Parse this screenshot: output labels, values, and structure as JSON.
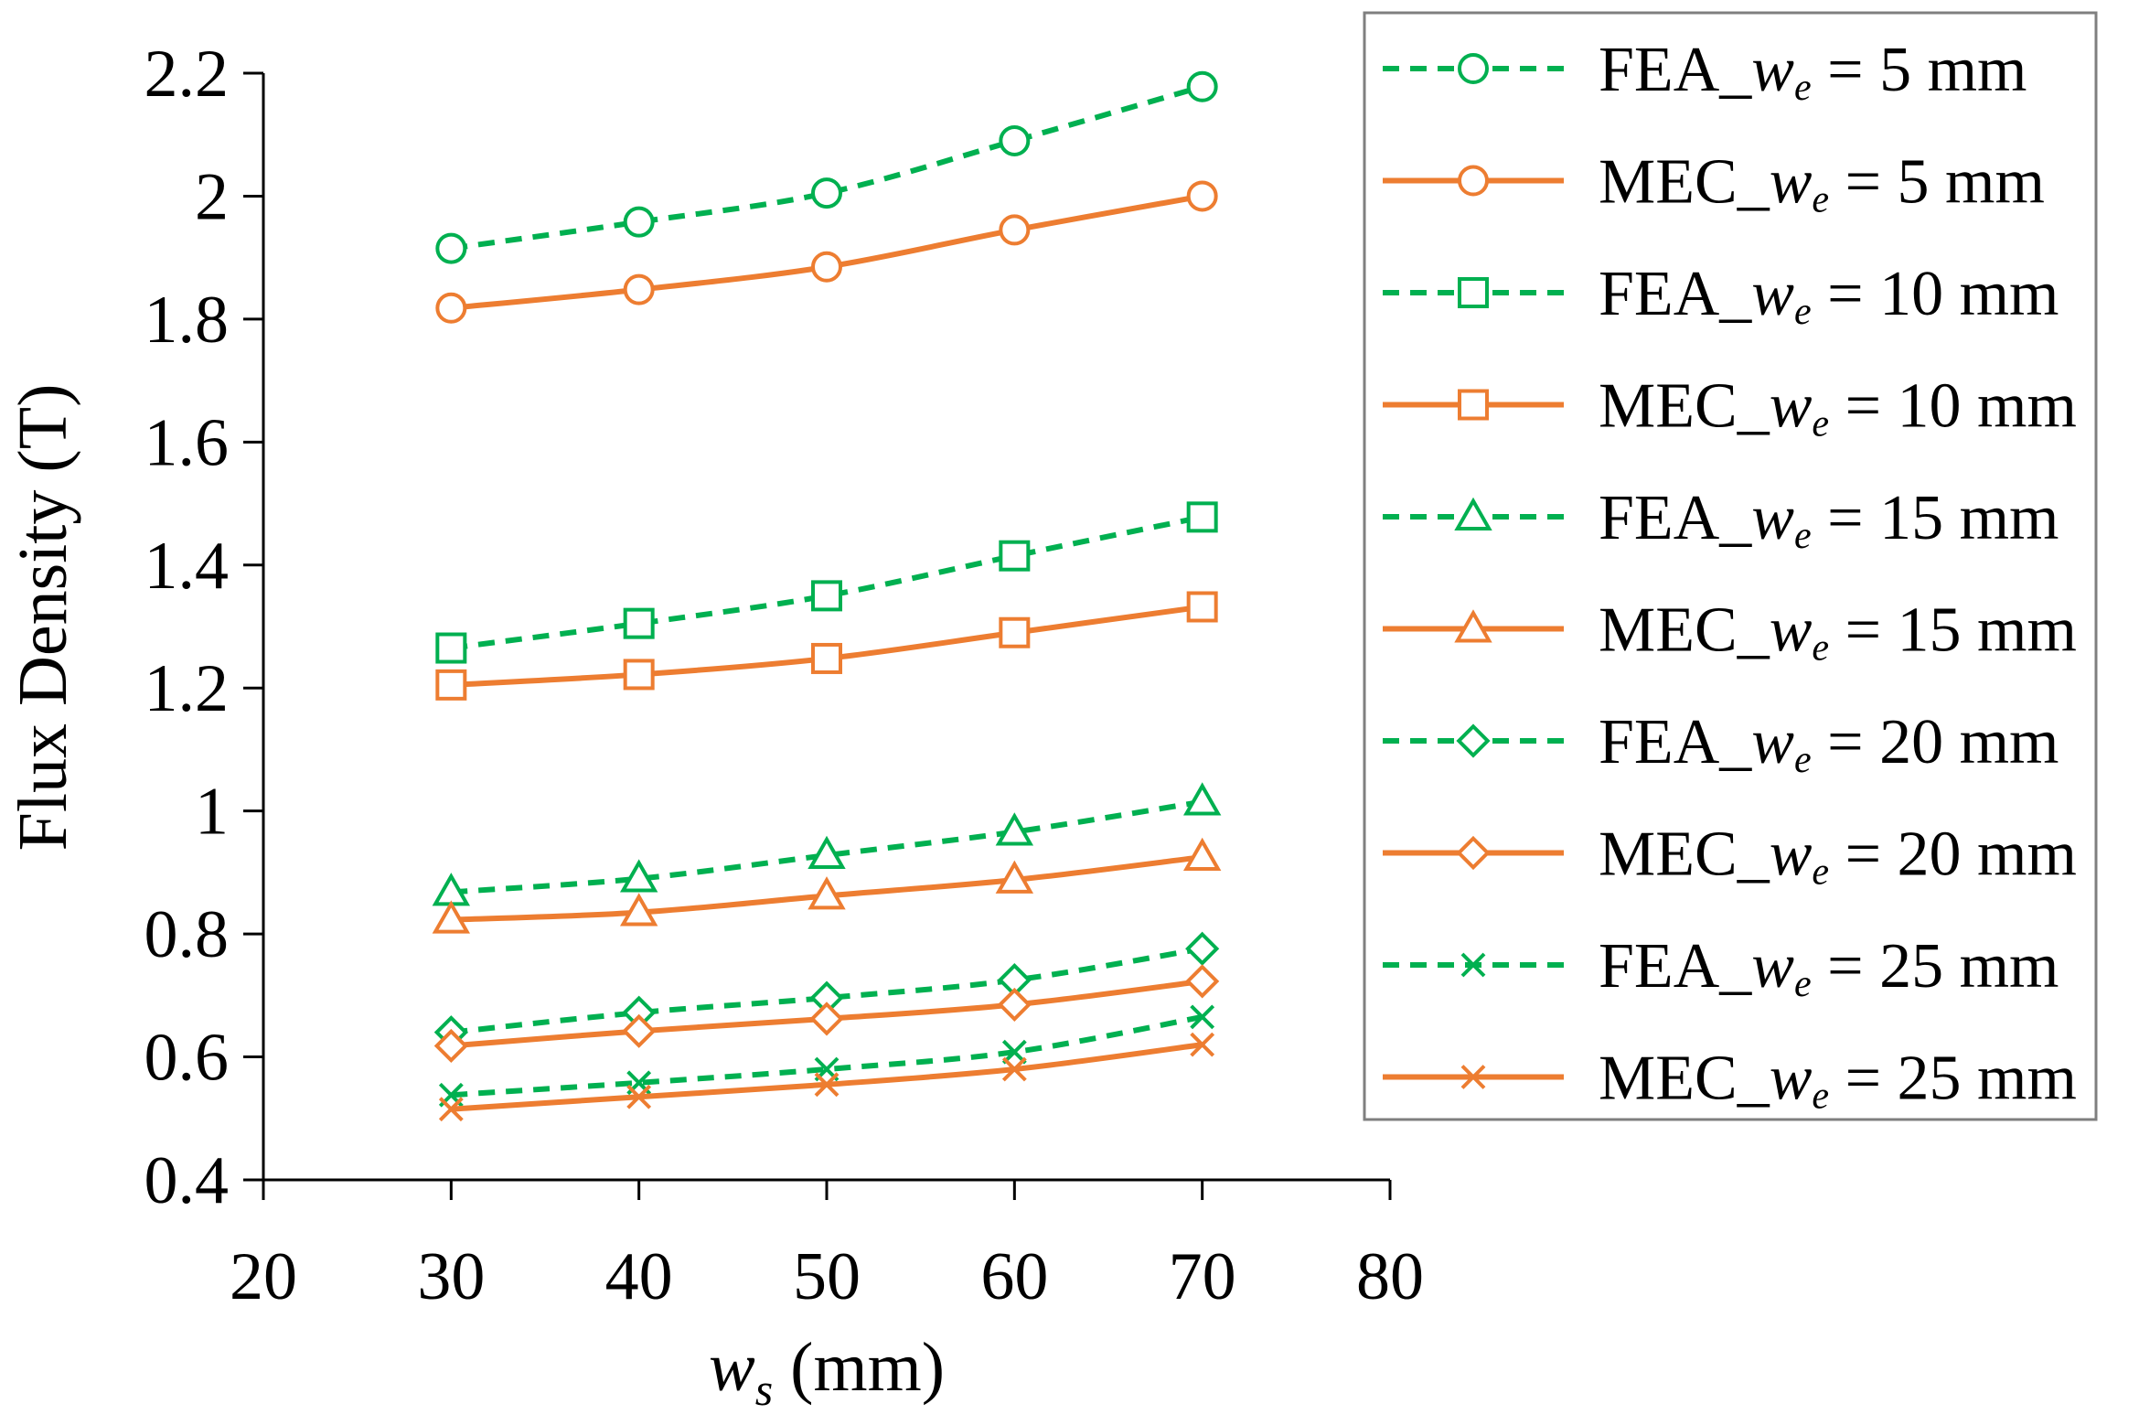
{
  "chart_data": {
    "type": "line",
    "xlabel": {
      "var": "w",
      "sub": "s",
      "rest": " (mm)"
    },
    "ylabel": "Flux Density (T)",
    "xlim": [
      20,
      80
    ],
    "ylim": [
      0.4,
      2.2
    ],
    "x_ticks": [
      "20",
      "30",
      "40",
      "50",
      "60",
      "70",
      "80"
    ],
    "y_ticks": [
      "0.4",
      "0.6",
      "0.8",
      "1",
      "1.2",
      "1.4",
      "1.6",
      "1.8",
      "2",
      "2.2"
    ],
    "x": [
      30,
      40,
      50,
      60,
      70
    ],
    "grid": false,
    "legend_position": "right",
    "colors": {
      "fea": "#00b050",
      "mec": "#ed7d31"
    },
    "series": [
      {
        "name_prefix": "FEA_",
        "name_var": "w",
        "name_sub": "e",
        "name_suffix": " = 5 mm",
        "method": "fea",
        "marker": "circle",
        "values": [
          1.915,
          1.958,
          2.005,
          2.09,
          2.178
        ]
      },
      {
        "name_prefix": "MEC_",
        "name_var": "w",
        "name_sub": "e",
        "name_suffix": " = 5 mm",
        "method": "mec",
        "marker": "circle",
        "values": [
          1.818,
          1.848,
          1.885,
          1.945,
          2.0
        ]
      },
      {
        "name_prefix": "FEA_",
        "name_var": "w",
        "name_sub": "e",
        "name_suffix": " = 10 mm",
        "method": "fea",
        "marker": "square",
        "values": [
          1.265,
          1.305,
          1.35,
          1.415,
          1.478
        ]
      },
      {
        "name_prefix": "MEC_",
        "name_var": "w",
        "name_sub": "e",
        "name_suffix": " = 10 mm",
        "method": "mec",
        "marker": "square",
        "values": [
          1.205,
          1.222,
          1.248,
          1.29,
          1.332
        ]
      },
      {
        "name_prefix": "FEA_",
        "name_var": "w",
        "name_sub": "e",
        "name_suffix": " = 15 mm",
        "method": "fea",
        "marker": "triangle",
        "values": [
          0.868,
          0.89,
          0.928,
          0.966,
          1.015
        ]
      },
      {
        "name_prefix": "MEC_",
        "name_var": "w",
        "name_sub": "e",
        "name_suffix": " = 15 mm",
        "method": "mec",
        "marker": "triangle",
        "values": [
          0.823,
          0.835,
          0.862,
          0.888,
          0.925
        ]
      },
      {
        "name_prefix": "FEA_",
        "name_var": "w",
        "name_sub": "e",
        "name_suffix": " = 20 mm",
        "method": "fea",
        "marker": "diamond",
        "values": [
          0.64,
          0.672,
          0.696,
          0.725,
          0.776
        ]
      },
      {
        "name_prefix": "MEC_",
        "name_var": "w",
        "name_sub": "e",
        "name_suffix": " = 20 mm",
        "method": "mec",
        "marker": "diamond",
        "values": [
          0.618,
          0.642,
          0.662,
          0.685,
          0.723
        ]
      },
      {
        "name_prefix": "FEA_",
        "name_var": "w",
        "name_sub": "e",
        "name_suffix": " = 25 mm",
        "method": "fea",
        "marker": "x",
        "values": [
          0.538,
          0.558,
          0.58,
          0.608,
          0.665
        ]
      },
      {
        "name_prefix": "MEC_",
        "name_var": "w",
        "name_sub": "e",
        "name_suffix": " = 25 mm",
        "method": "mec",
        "marker": "x",
        "values": [
          0.515,
          0.535,
          0.555,
          0.58,
          0.62
        ]
      }
    ]
  }
}
